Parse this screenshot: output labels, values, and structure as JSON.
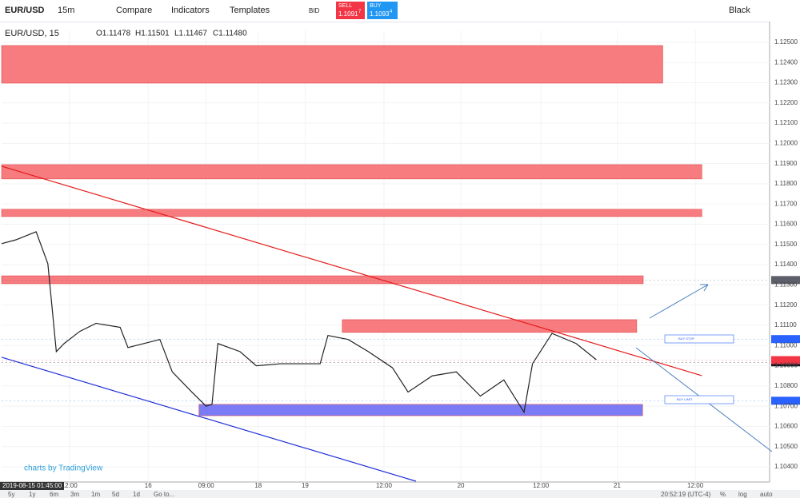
{
  "toolbar": {
    "symbol": "EUR/USD",
    "interval": "15m",
    "compare": "Compare",
    "indicators": "Indicators",
    "templates": "Templates",
    "price_type": "BID",
    "sell": "SELL",
    "sell_price": "1.1091",
    "sell_pip": "7",
    "buy": "BUY",
    "buy_price": "1.1093",
    "buy_pip": "4",
    "theme": "Black"
  },
  "legend": {
    "symbol": "EUR/USD, 15",
    "open": "O1.11478",
    "high": "H1.11501",
    "low": "L1.11467",
    "close": "C1.11480"
  },
  "watermark": "charts by TradingView",
  "orders": [
    "BUY STOP",
    "BUY LIMIT"
  ],
  "bottom": {
    "cursor_date": "2019-08-15 01:45:00",
    "ranges": [
      "5y",
      "1y",
      "6m",
      "3m",
      "1m",
      "5d",
      "1d"
    ],
    "goto": "Go to...",
    "clock": "20:52:19 (UTC-4)",
    "percent": "%",
    "log": "log",
    "auto": "auto"
  },
  "chart_data": {
    "type": "line",
    "xlim": [
      0,
      117.9
    ],
    "ylim": [
      1.10325,
      1.12559
    ],
    "xticks": [
      {
        "value": 10.4,
        "label": "12:00"
      },
      {
        "value": 22.5,
        "label": "16"
      },
      {
        "value": 31.4,
        "label": "09:00"
      },
      {
        "value": 39.4,
        "label": "18"
      },
      {
        "value": 46.6,
        "label": "19"
      },
      {
        "value": 58.7,
        "label": "12:00"
      },
      {
        "value": 70.5,
        "label": "20"
      },
      {
        "value": 82.8,
        "label": "12:00"
      },
      {
        "value": 94.5,
        "label": "21"
      },
      {
        "value": 106.5,
        "label": "12:00"
      }
    ],
    "yticks": [
      {
        "value": 1.104,
        "label": "1.10400"
      },
      {
        "value": 1.105,
        "label": "1.10500"
      },
      {
        "value": 1.106,
        "label": "1.10600"
      },
      {
        "value": 1.107,
        "label": "1.10700"
      },
      {
        "value": 1.108,
        "label": "1.10800"
      },
      {
        "value": 1.109,
        "label": "1.10900"
      },
      {
        "value": 1.11,
        "label": "1.11000"
      },
      {
        "value": 1.111,
        "label": "1.11100"
      },
      {
        "value": 1.112,
        "label": "1.11200"
      },
      {
        "value": 1.113,
        "label": "1.11300"
      },
      {
        "value": 1.114,
        "label": "1.11400"
      },
      {
        "value": 1.115,
        "label": "1.11500"
      },
      {
        "value": 1.116,
        "label": "1.11600"
      },
      {
        "value": 1.117,
        "label": "1.11700"
      },
      {
        "value": 1.118,
        "label": "1.11800"
      },
      {
        "value": 1.119,
        "label": "1.11900"
      },
      {
        "value": 1.12,
        "label": "1.12000"
      },
      {
        "value": 1.121,
        "label": "1.12100"
      },
      {
        "value": 1.122,
        "label": "1.12200"
      },
      {
        "value": 1.123,
        "label": "1.12300"
      },
      {
        "value": 1.124,
        "label": "1.12400"
      },
      {
        "value": 1.125,
        "label": "1.12500"
      }
    ],
    "series": [
      {
        "color": "#222222",
        "x": [
          0,
          2.2,
          5.3,
          7.1,
          8.4,
          9.6,
          12.0,
          14.5,
          18.2,
          19.4,
          24.3,
          26.2,
          29.2,
          31.4,
          32.3,
          33.2,
          36.6,
          39.1,
          42.8,
          48.9,
          50.1,
          53.2,
          56.3,
          60.0,
          62.4,
          66.1,
          69.8,
          73.5,
          77.1,
          80.2,
          81.5,
          84.5,
          88.2,
          91.3
        ],
        "values": [
          1.11504,
          1.11523,
          1.11563,
          1.11405,
          1.1097,
          1.1101,
          1.1107,
          1.1111,
          1.1109,
          1.1099,
          1.1103,
          1.1087,
          1.1077,
          1.107,
          1.1071,
          1.1101,
          1.1097,
          1.109,
          1.1091,
          1.1091,
          1.1105,
          1.1103,
          1.1097,
          1.1089,
          1.1077,
          1.1085,
          1.1087,
          1.1075,
          1.1083,
          1.1067,
          1.1091,
          1.1106,
          1.1101,
          1.1093
        ]
      }
    ],
    "zones": [
      {
        "x0": 0,
        "x1": 101.5,
        "y0": 1.12298,
        "y1": 1.12484,
        "color": "#f77c80"
      },
      {
        "x0": 0,
        "x1": 107.5,
        "y0": 1.11824,
        "y1": 1.11895,
        "color": "#f77c80"
      },
      {
        "x0": 0,
        "x1": 107.5,
        "y0": 1.11638,
        "y1": 1.11674,
        "color": "#f77c80"
      },
      {
        "x0": 0,
        "x1": 98.5,
        "y0": 1.11306,
        "y1": 1.11345,
        "color": "#f77c80"
      },
      {
        "x0": 52.3,
        "x1": 97.5,
        "y0": 1.11065,
        "y1": 1.11128,
        "color": "#f77c80"
      },
      {
        "x0": 30.3,
        "x1": 98.4,
        "y0": 1.10653,
        "y1": 1.10709,
        "color": "#7b7cf5"
      }
    ],
    "trendlines": [
      {
        "x0": 0,
        "x1": 107.5,
        "y0": 1.11887,
        "y1": 1.10851,
        "color": "#e41b1b"
      },
      {
        "x0": 0,
        "x1": 63.6,
        "y0": 1.10942,
        "y1": 1.10329,
        "color": "#1f2fd6"
      }
    ],
    "price_labels": [
      {
        "value": 1.11324,
        "color": "#5d606b"
      },
      {
        "value": 1.11032,
        "color": "#2962ff"
      },
      {
        "value": 1.10928,
        "color": "#f23645"
      },
      {
        "value": 1.10917,
        "color": "#131722"
      },
      {
        "value": 1.10727,
        "color": "#2962ff"
      }
    ]
  }
}
